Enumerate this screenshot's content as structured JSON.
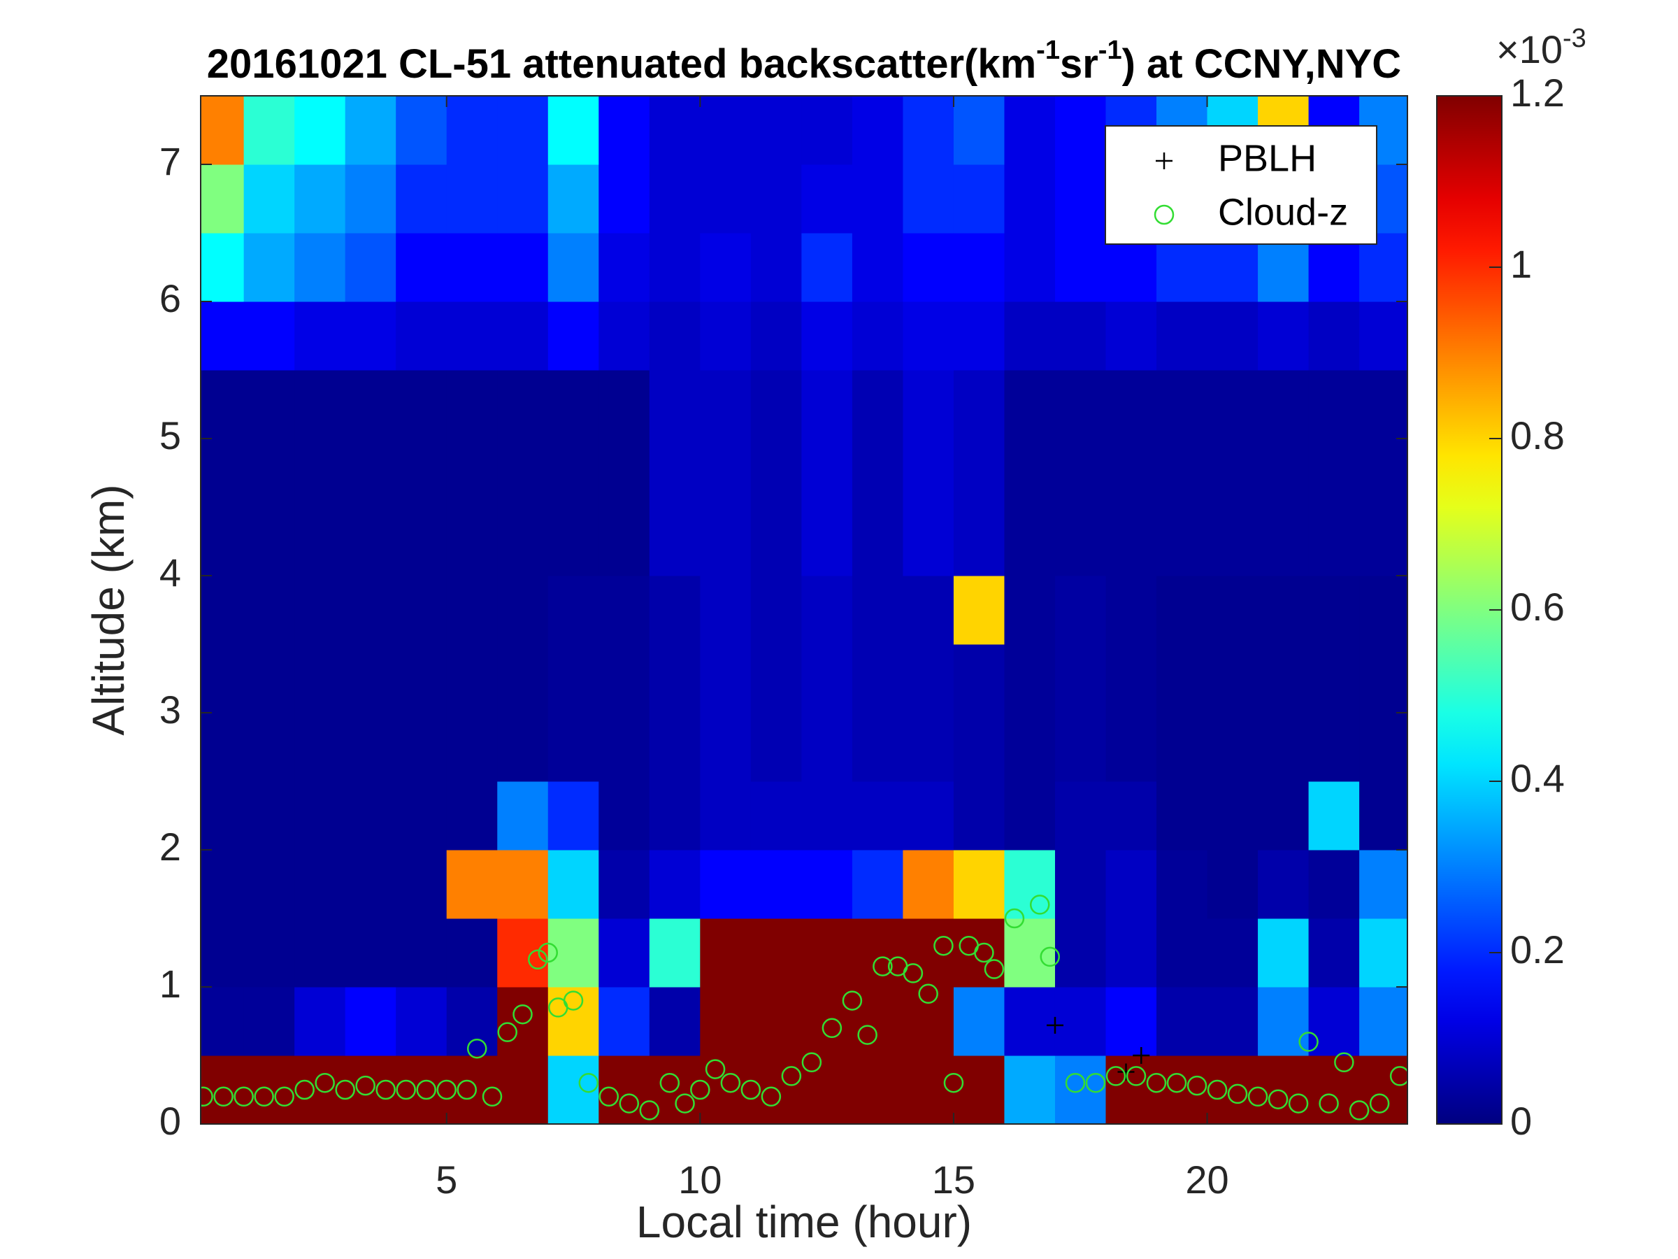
{
  "chart_data": {
    "type": "heatmap",
    "title": [
      "20161021  CL-51 attenuated backscatter(km",
      "-1",
      "sr",
      "-1",
      ") at CCNY,NYC"
    ],
    "xlabel": "Local time (hour)",
    "ylabel": "Altitude (km)",
    "xlim": [
      0.15,
      23.95
    ],
    "ylim": [
      0,
      7.5
    ],
    "xticks": [
      5,
      10,
      15,
      20
    ],
    "yticks": [
      0,
      1,
      2,
      3,
      4,
      5,
      6,
      7
    ],
    "colormap": "jet",
    "x_bins": [
      0,
      1,
      2,
      3,
      4,
      5,
      6,
      7,
      8,
      9,
      10,
      11,
      12,
      13,
      14,
      15,
      16,
      17,
      18,
      19,
      20,
      21,
      22,
      23,
      24
    ],
    "y_bins": [
      0,
      0.5,
      1,
      1.5,
      2,
      2.5,
      3,
      3.5,
      4,
      4.5,
      5,
      5.5,
      6,
      6.5,
      7,
      7.5
    ],
    "z": [
      [
        1.2,
        1.2,
        1.2,
        1.2,
        1.2,
        1.2,
        1.2,
        0.4,
        1.2,
        1.2,
        1.2,
        1.2,
        1.2,
        1.2,
        1.2,
        1.2,
        0.35,
        0.3,
        1.2,
        1.2,
        1.2,
        1.2,
        1.2,
        1.2
      ],
      [
        0.03,
        0.03,
        0.1,
        0.15,
        0.1,
        0.05,
        1.2,
        0.8,
        0.2,
        0.05,
        1.2,
        1.2,
        1.2,
        1.2,
        1.2,
        0.3,
        0.1,
        0.1,
        0.15,
        0.05,
        0.05,
        0.3,
        0.1,
        0.3
      ],
      [
        0.02,
        0.02,
        0.02,
        0.02,
        0.02,
        0.02,
        1.0,
        0.6,
        0.1,
        0.5,
        1.2,
        1.2,
        1.2,
        1.2,
        1.2,
        1.2,
        0.6,
        0.05,
        0.08,
        0.03,
        0.03,
        0.4,
        0.05,
        0.4
      ],
      [
        0.02,
        0.02,
        0.02,
        0.02,
        0.02,
        0.9,
        0.9,
        0.4,
        0.05,
        0.1,
        0.15,
        0.15,
        0.15,
        0.2,
        0.9,
        0.8,
        0.5,
        0.05,
        0.08,
        0.03,
        0.02,
        0.05,
        0.03,
        0.3
      ],
      [
        0.02,
        0.02,
        0.02,
        0.02,
        0.02,
        0.02,
        0.3,
        0.2,
        0.03,
        0.05,
        0.08,
        0.08,
        0.08,
        0.08,
        0.08,
        0.05,
        0.03,
        0.05,
        0.05,
        0.02,
        0.02,
        0.02,
        0.4,
        0.02
      ],
      [
        0.02,
        0.02,
        0.02,
        0.02,
        0.02,
        0.02,
        0.02,
        0.03,
        0.03,
        0.05,
        0.08,
        0.06,
        0.08,
        0.06,
        0.06,
        0.05,
        0.03,
        0.04,
        0.03,
        0.02,
        0.02,
        0.02,
        0.02,
        0.02
      ],
      [
        0.02,
        0.02,
        0.02,
        0.02,
        0.02,
        0.02,
        0.02,
        0.03,
        0.03,
        0.05,
        0.08,
        0.06,
        0.08,
        0.06,
        0.06,
        0.05,
        0.03,
        0.04,
        0.03,
        0.02,
        0.02,
        0.02,
        0.02,
        0.02
      ],
      [
        0.02,
        0.02,
        0.02,
        0.02,
        0.02,
        0.02,
        0.02,
        0.03,
        0.03,
        0.05,
        0.08,
        0.06,
        0.08,
        0.06,
        0.06,
        0.8,
        0.03,
        0.04,
        0.03,
        0.02,
        0.02,
        0.02,
        0.02,
        0.02
      ],
      [
        0.02,
        0.02,
        0.02,
        0.02,
        0.02,
        0.02,
        0.02,
        0.02,
        0.02,
        0.08,
        0.08,
        0.06,
        0.1,
        0.06,
        0.1,
        0.08,
        0.03,
        0.03,
        0.03,
        0.03,
        0.03,
        0.03,
        0.03,
        0.03
      ],
      [
        0.02,
        0.02,
        0.02,
        0.02,
        0.02,
        0.02,
        0.02,
        0.02,
        0.02,
        0.08,
        0.08,
        0.06,
        0.1,
        0.06,
        0.1,
        0.08,
        0.03,
        0.03,
        0.03,
        0.03,
        0.03,
        0.03,
        0.03,
        0.03
      ],
      [
        0.02,
        0.02,
        0.02,
        0.02,
        0.02,
        0.02,
        0.02,
        0.02,
        0.02,
        0.08,
        0.08,
        0.06,
        0.1,
        0.06,
        0.1,
        0.08,
        0.03,
        0.03,
        0.03,
        0.03,
        0.03,
        0.03,
        0.03,
        0.03
      ],
      [
        0.15,
        0.15,
        0.12,
        0.12,
        0.1,
        0.1,
        0.1,
        0.15,
        0.1,
        0.08,
        0.1,
        0.08,
        0.12,
        0.1,
        0.12,
        0.12,
        0.08,
        0.08,
        0.1,
        0.08,
        0.08,
        0.1,
        0.08,
        0.1
      ],
      [
        0.45,
        0.35,
        0.3,
        0.25,
        0.15,
        0.15,
        0.15,
        0.3,
        0.12,
        0.1,
        0.12,
        0.1,
        0.2,
        0.12,
        0.15,
        0.15,
        0.12,
        0.15,
        0.15,
        0.2,
        0.2,
        0.3,
        0.15,
        0.2
      ],
      [
        0.6,
        0.4,
        0.35,
        0.3,
        0.2,
        0.2,
        0.2,
        0.35,
        0.15,
        0.1,
        0.1,
        0.1,
        0.12,
        0.12,
        0.2,
        0.2,
        0.12,
        0.15,
        0.2,
        0.25,
        0.25,
        0.35,
        0.15,
        0.25
      ],
      [
        0.9,
        0.5,
        0.45,
        0.35,
        0.25,
        0.2,
        0.2,
        0.45,
        0.15,
        0.1,
        0.1,
        0.1,
        0.1,
        0.12,
        0.2,
        0.25,
        0.12,
        0.15,
        0.2,
        0.3,
        0.4,
        0.8,
        0.15,
        0.3
      ]
    ],
    "colorbar": {
      "clim": [
        0,
        1.2
      ],
      "ticks": [
        0,
        0.2,
        0.4,
        0.6,
        0.8,
        1,
        1.2
      ],
      "multiplier": "×10",
      "exponent": "-3"
    },
    "legend": "upper right",
    "series": [
      {
        "name": "PBLH",
        "color": "#000000",
        "marker": "+",
        "x": [
          17.0,
          18.4,
          18.7
        ],
        "values": [
          0.72,
          0.38,
          0.5
        ]
      },
      {
        "name": "Cloud-z",
        "color": "#33dd33",
        "marker": "o",
        "x": [
          0.2,
          0.6,
          1.0,
          1.4,
          1.8,
          2.2,
          2.6,
          3.0,
          3.4,
          3.8,
          4.2,
          4.6,
          5.0,
          5.4,
          5.6,
          5.9,
          6.2,
          6.5,
          6.8,
          7.0,
          7.2,
          7.5,
          7.8,
          8.2,
          8.6,
          9.0,
          9.4,
          9.7,
          10.0,
          10.3,
          10.6,
          11.0,
          11.4,
          11.8,
          12.2,
          12.6,
          13.0,
          13.3,
          13.6,
          13.9,
          14.2,
          14.5,
          14.8,
          15.0,
          15.3,
          15.6,
          15.8,
          16.2,
          16.7,
          16.9,
          17.4,
          17.8,
          18.2,
          18.6,
          19.0,
          19.4,
          19.8,
          20.2,
          20.6,
          21.0,
          21.4,
          21.8,
          22.0,
          22.4,
          22.7,
          23.0,
          23.4,
          23.8
        ],
        "values": [
          0.2,
          0.2,
          0.2,
          0.2,
          0.2,
          0.25,
          0.3,
          0.25,
          0.28,
          0.25,
          0.25,
          0.25,
          0.25,
          0.25,
          0.55,
          0.2,
          0.67,
          0.8,
          1.2,
          1.25,
          0.85,
          0.9,
          0.3,
          0.2,
          0.15,
          0.1,
          0.3,
          0.15,
          0.25,
          0.4,
          0.3,
          0.25,
          0.2,
          0.35,
          0.45,
          0.7,
          0.9,
          0.65,
          1.15,
          1.15,
          1.1,
          0.95,
          1.3,
          0.3,
          1.3,
          1.25,
          1.13,
          1.5,
          1.6,
          1.22,
          0.3,
          0.3,
          0.35,
          0.35,
          0.3,
          0.3,
          0.28,
          0.25,
          0.22,
          0.2,
          0.18,
          0.15,
          0.6,
          0.15,
          0.45,
          0.1,
          0.15,
          0.35
        ]
      }
    ]
  }
}
